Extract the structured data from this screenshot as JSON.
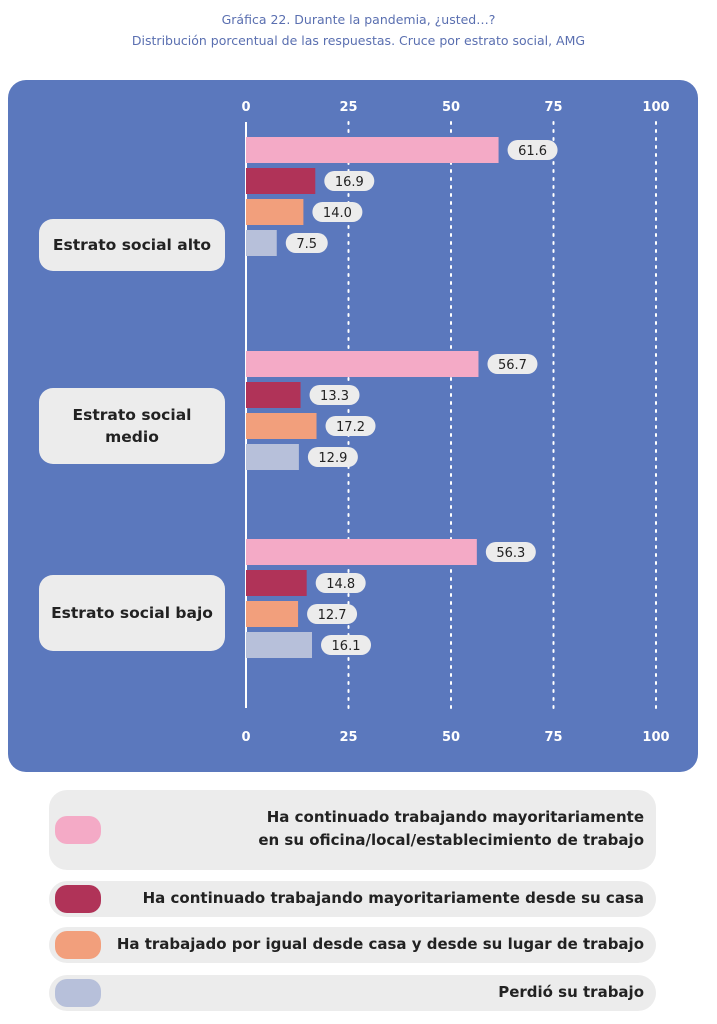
{
  "header": {
    "title": "Gráfica 22. Durante la pandemia, ¿usted…?",
    "subtitle": "Distribución porcentual de las respuestas. Cruce por estrato social, AMG"
  },
  "colors": {
    "panel": "#5b78bd",
    "series": [
      "#f4aac6",
      "#b03358",
      "#f29f7c",
      "#b7c0da"
    ]
  },
  "chart_data": {
    "type": "bar",
    "orientation": "horizontal",
    "x_ticks": [
      "0",
      "25",
      "50",
      "75",
      "100"
    ],
    "xlim": [
      0,
      100
    ],
    "grid": "dotted vertical lines",
    "legend_placement": "bottom",
    "categories": [
      "Estrato social alto",
      "Estrato social medio",
      "Estrato social bajo"
    ],
    "series": [
      {
        "name": "Ha continuado trabajando mayoritariamente en su oficina/local/establecimiento de trabajo",
        "values": [
          61.6,
          56.7,
          56.3
        ],
        "labels": [
          "61.6",
          "56.7",
          "56.3"
        ]
      },
      {
        "name": "Ha continuado trabajando mayoritariamente desde su casa",
        "values": [
          16.9,
          13.3,
          14.8
        ],
        "labels": [
          "16.9",
          "13.3",
          "14.8"
        ]
      },
      {
        "name": "Ha trabajado por igual desde casa y desde su lugar de trabajo",
        "values": [
          14.0,
          17.2,
          12.7
        ],
        "labels": [
          "14.0",
          "17.2",
          "12.7"
        ]
      },
      {
        "name": "Perdió su trabajo",
        "values": [
          7.5,
          12.9,
          16.1
        ],
        "labels": [
          "7.5",
          "12.9",
          "16.1"
        ]
      }
    ]
  },
  "groups": {
    "alto": "Estrato social alto",
    "medio_line1": "Estrato social",
    "medio_line2": "medio",
    "bajo": "Estrato social bajo"
  },
  "legend": {
    "item1_line1": "Ha continuado trabajando mayoritariamente",
    "item1_line2": "en su oficina/local/establecimiento de trabajo",
    "item2": "Ha continuado trabajando mayoritariamente desde su casa",
    "item3": "Ha trabajado por igual desde casa y desde su lugar de trabajo",
    "item4": "Perdió su trabajo"
  }
}
